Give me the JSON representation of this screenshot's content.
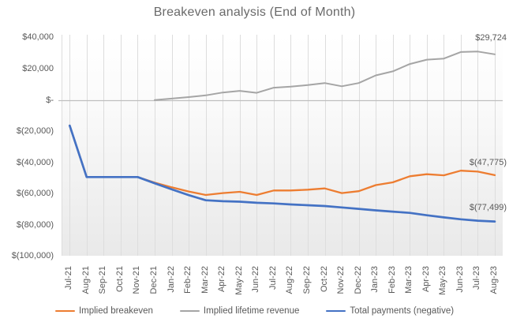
{
  "chart_data": {
    "type": "line",
    "title": "Breakeven analysis (End of Month)",
    "categories": [
      "Jul-21",
      "Aug-21",
      "Sep-21",
      "Oct-21",
      "Nov-21",
      "Dec-21",
      "Jan-22",
      "Feb-22",
      "Mar-22",
      "Apr-22",
      "May-22",
      "Jun-22",
      "Jul-22",
      "Aug-22",
      "Sep-22",
      "Oct-22",
      "Nov-22",
      "Dec-22",
      "Jan-23",
      "Feb-23",
      "Mar-23",
      "Apr-23",
      "May-23",
      "Jun-23",
      "Jul-23",
      "Aug-23"
    ],
    "series": [
      {
        "name": "Implied breakeven",
        "color": "#ED7D31",
        "values": [
          -16000,
          -49000,
          -49000,
          -49000,
          -49000,
          -52600,
          -55600,
          -58300,
          -60500,
          -59300,
          -58500,
          -60500,
          -57600,
          -57600,
          -57100,
          -56300,
          -59300,
          -58100,
          -54200,
          -52400,
          -48500,
          -47200,
          -47900,
          -44900,
          -45500,
          -47775
        ]
      },
      {
        "name": "Implied lifetime revenue",
        "color": "#A5A5A5",
        "values": [
          null,
          null,
          null,
          null,
          null,
          400,
          1300,
          2300,
          3400,
          5200,
          6300,
          5000,
          8300,
          9000,
          10000,
          11300,
          9200,
          11300,
          16200,
          18800,
          23500,
          26300,
          27000,
          31200,
          31500,
          29724
        ]
      },
      {
        "name": "Total payments (negative)",
        "color": "#4472C4",
        "values": [
          -16000,
          -49000,
          -49000,
          -49000,
          -49000,
          -53000,
          -56900,
          -60600,
          -63900,
          -64500,
          -64800,
          -65500,
          -65900,
          -66600,
          -67100,
          -67600,
          -68500,
          -69400,
          -70400,
          -71200,
          -72000,
          -73500,
          -74900,
          -76100,
          -77000,
          -77499
        ]
      }
    ],
    "y_axis": {
      "labels": [
        "$40,000",
        "$20,000",
        "$-",
        "$(20,000)",
        "$(40,000)",
        "$(60,000)",
        "$(80,000)",
        "$(100,000)"
      ],
      "values": [
        40000,
        20000,
        0,
        -20000,
        -40000,
        -60000,
        -80000,
        -100000
      ]
    },
    "ylim": [
      -100000,
      40000
    ],
    "grid": "vertical",
    "legend_position": "bottom",
    "end_labels": [
      {
        "series": "Implied lifetime revenue",
        "text": "$29,724",
        "value": 29724
      },
      {
        "series": "Implied breakeven",
        "text": "$(47,775)",
        "value": -47775
      },
      {
        "series": "Total payments (negative)",
        "text": "$(77,499)",
        "value": -77499
      }
    ]
  },
  "colors": {
    "title_text": "#6A6A6A",
    "axis_text": "#595959",
    "gridline": "#DDDDDD",
    "zero_axis": "#BFBFBF",
    "plot_bg_top": "#FFFFFF",
    "plot_bg_bottom": "#E9E9E9"
  }
}
